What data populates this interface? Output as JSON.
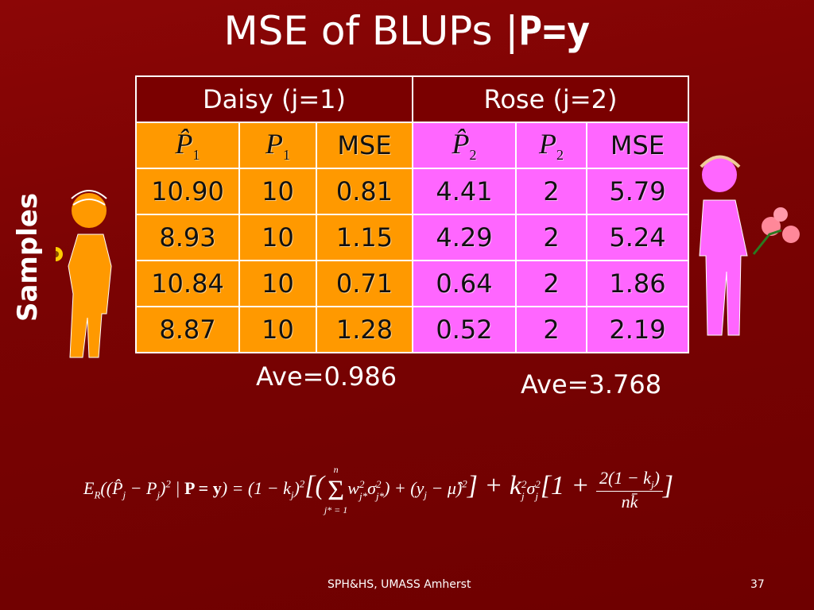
{
  "title": {
    "main": "MSE of BLUPs |",
    "bold": "P=y"
  },
  "table": {
    "groups": [
      "Daisy (j=1)",
      "Rose (j=2)"
    ],
    "columns": [
      {
        "symbol": "P̂",
        "sub": "1"
      },
      {
        "symbol": "P",
        "sub": "1"
      },
      {
        "symbol": "MSE"
      },
      {
        "symbol": "P̂",
        "sub": "2"
      },
      {
        "symbol": "P",
        "sub": "2"
      },
      {
        "symbol": "MSE"
      }
    ],
    "rows": [
      [
        "10.90",
        "10",
        "0.81",
        "4.41",
        "2",
        "5.79"
      ],
      [
        "8.93",
        "10",
        "1.15",
        "4.29",
        "2",
        "5.24"
      ],
      [
        "10.84",
        "10",
        "0.71",
        "0.64",
        "2",
        "1.86"
      ],
      [
        "8.87",
        "10",
        "1.28",
        "0.52",
        "2",
        "2.19"
      ]
    ]
  },
  "averages": [
    "Ave=0.986",
    "Ave=3.768"
  ],
  "side_label": "Samples",
  "formula": [
    "E",
    "R",
    "((",
    "P̂",
    "j",
    " − P",
    "j",
    ")",
    "2",
    " | ",
    "P = y",
    ") = (1 − k",
    "j",
    ")",
    "2",
    "[(",
    "Σ",
    "n",
    "j* = 1",
    "w",
    "2",
    "j*",
    "σ",
    "2",
    "j*",
    ") + (y",
    "j",
    " − μ̂)",
    "2",
    "] + k",
    "j",
    "2",
    "σ",
    "2",
    "j",
    "[1 + ",
    "2(1 − k",
    "j",
    ")",
    "nk̄",
    "]"
  ],
  "footer": {
    "text": "SPH&HS, UMASS  Amherst",
    "page": "37"
  }
}
